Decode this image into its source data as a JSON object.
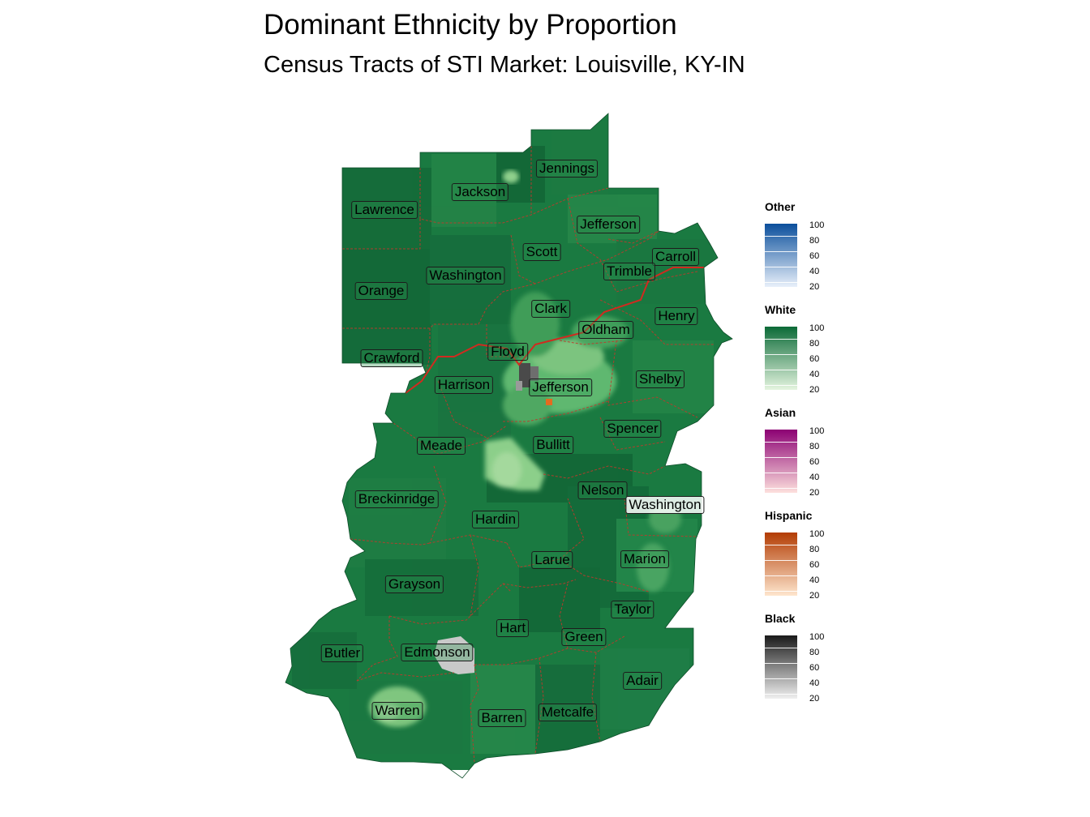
{
  "header": {
    "title": "Dominant Ethnicity by Proportion",
    "subtitle": "Census Tracts of STI Market: Louisville, KY-IN"
  },
  "counties": [
    {
      "name": "Jennings",
      "light": false
    },
    {
      "name": "Jackson",
      "light": false
    },
    {
      "name": "Lawrence",
      "light": false
    },
    {
      "name": "Jefferson",
      "light": false
    },
    {
      "name": "Scott",
      "light": false
    },
    {
      "name": "Carroll",
      "light": false
    },
    {
      "name": "Washington",
      "light": false
    },
    {
      "name": "Trimble",
      "light": false
    },
    {
      "name": "Orange",
      "light": false
    },
    {
      "name": "Clark",
      "light": false
    },
    {
      "name": "Henry",
      "light": false
    },
    {
      "name": "Oldham",
      "light": false
    },
    {
      "name": "Floyd",
      "light": false
    },
    {
      "name": "Crawford",
      "light": false
    },
    {
      "name": "Shelby",
      "light": false
    },
    {
      "name": "Harrison",
      "light": false
    },
    {
      "name": "Jefferson",
      "light": false
    },
    {
      "name": "Spencer",
      "light": false
    },
    {
      "name": "Meade",
      "light": false
    },
    {
      "name": "Bullitt",
      "light": false
    },
    {
      "name": "Nelson",
      "light": false
    },
    {
      "name": "Breckinridge",
      "light": false
    },
    {
      "name": "Washington",
      "light": true
    },
    {
      "name": "Hardin",
      "light": false
    },
    {
      "name": "Marion",
      "light": false
    },
    {
      "name": "Larue",
      "light": false
    },
    {
      "name": "Grayson",
      "light": false
    },
    {
      "name": "Taylor",
      "light": false
    },
    {
      "name": "Hart",
      "light": false
    },
    {
      "name": "Green",
      "light": false
    },
    {
      "name": "Butler",
      "light": false
    },
    {
      "name": "Edmonson",
      "light": false
    },
    {
      "name": "Adair",
      "light": false
    },
    {
      "name": "Warren",
      "light": false
    },
    {
      "name": "Barren",
      "light": false
    },
    {
      "name": "Metcalfe",
      "light": false
    }
  ],
  "legend": [
    {
      "title": "Other",
      "ticks": [
        "100",
        "80",
        "60",
        "40",
        "20"
      ],
      "color_low": "#e8f0fa",
      "color_high": "#0b4f9c"
    },
    {
      "title": "White",
      "ticks": [
        "100",
        "80",
        "60",
        "40",
        "20"
      ],
      "color_low": "#e5f5e0",
      "color_high": "#0b6a37"
    },
    {
      "title": "Asian",
      "ticks": [
        "100",
        "80",
        "60",
        "40",
        "20"
      ],
      "color_low": "#fde0dd",
      "color_high": "#8c0173"
    },
    {
      "title": "Hispanic",
      "ticks": [
        "100",
        "80",
        "60",
        "40",
        "20"
      ],
      "color_low": "#fee6ce",
      "color_high": "#b33c03"
    },
    {
      "title": "Black",
      "ticks": [
        "100",
        "80",
        "60",
        "40",
        "20"
      ],
      "color_low": "#f0f0f0",
      "color_high": "#1a1a1a"
    }
  ],
  "colors": {
    "white_majority": "#1a7a41",
    "county_border": "#c0392b"
  }
}
